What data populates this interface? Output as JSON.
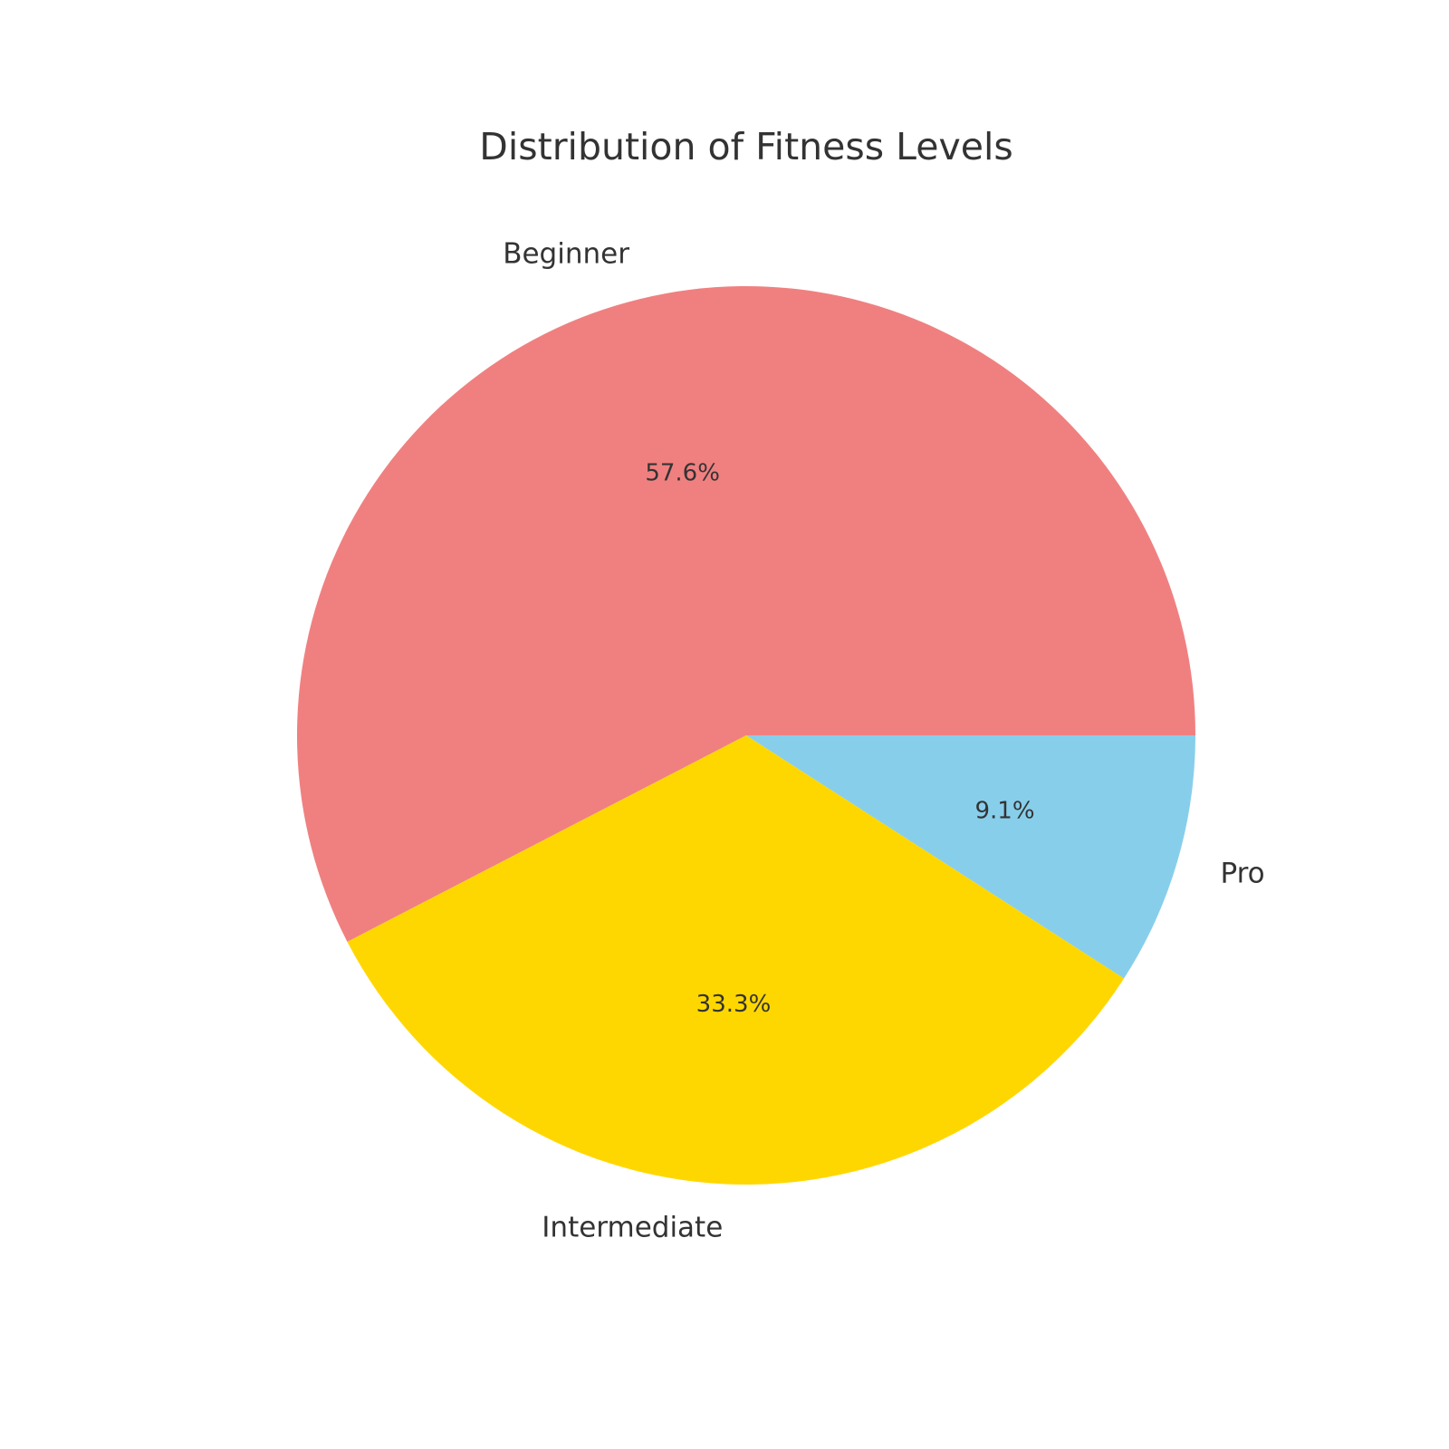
{
  "chart_data": {
    "type": "pie",
    "title": "Distribution of Fitness Levels",
    "start_angle_deg": 0,
    "direction": "counterclockwise",
    "slices": [
      {
        "label": "Beginner",
        "value": 57.6,
        "pct_label": "57.6%",
        "color": "#F08080"
      },
      {
        "label": "Intermediate",
        "value": 33.3,
        "pct_label": "33.3%",
        "color": "#FFD700"
      },
      {
        "label": "Pro",
        "value": 9.1,
        "pct_label": "9.1%",
        "color": "#87CEEB"
      }
    ]
  }
}
